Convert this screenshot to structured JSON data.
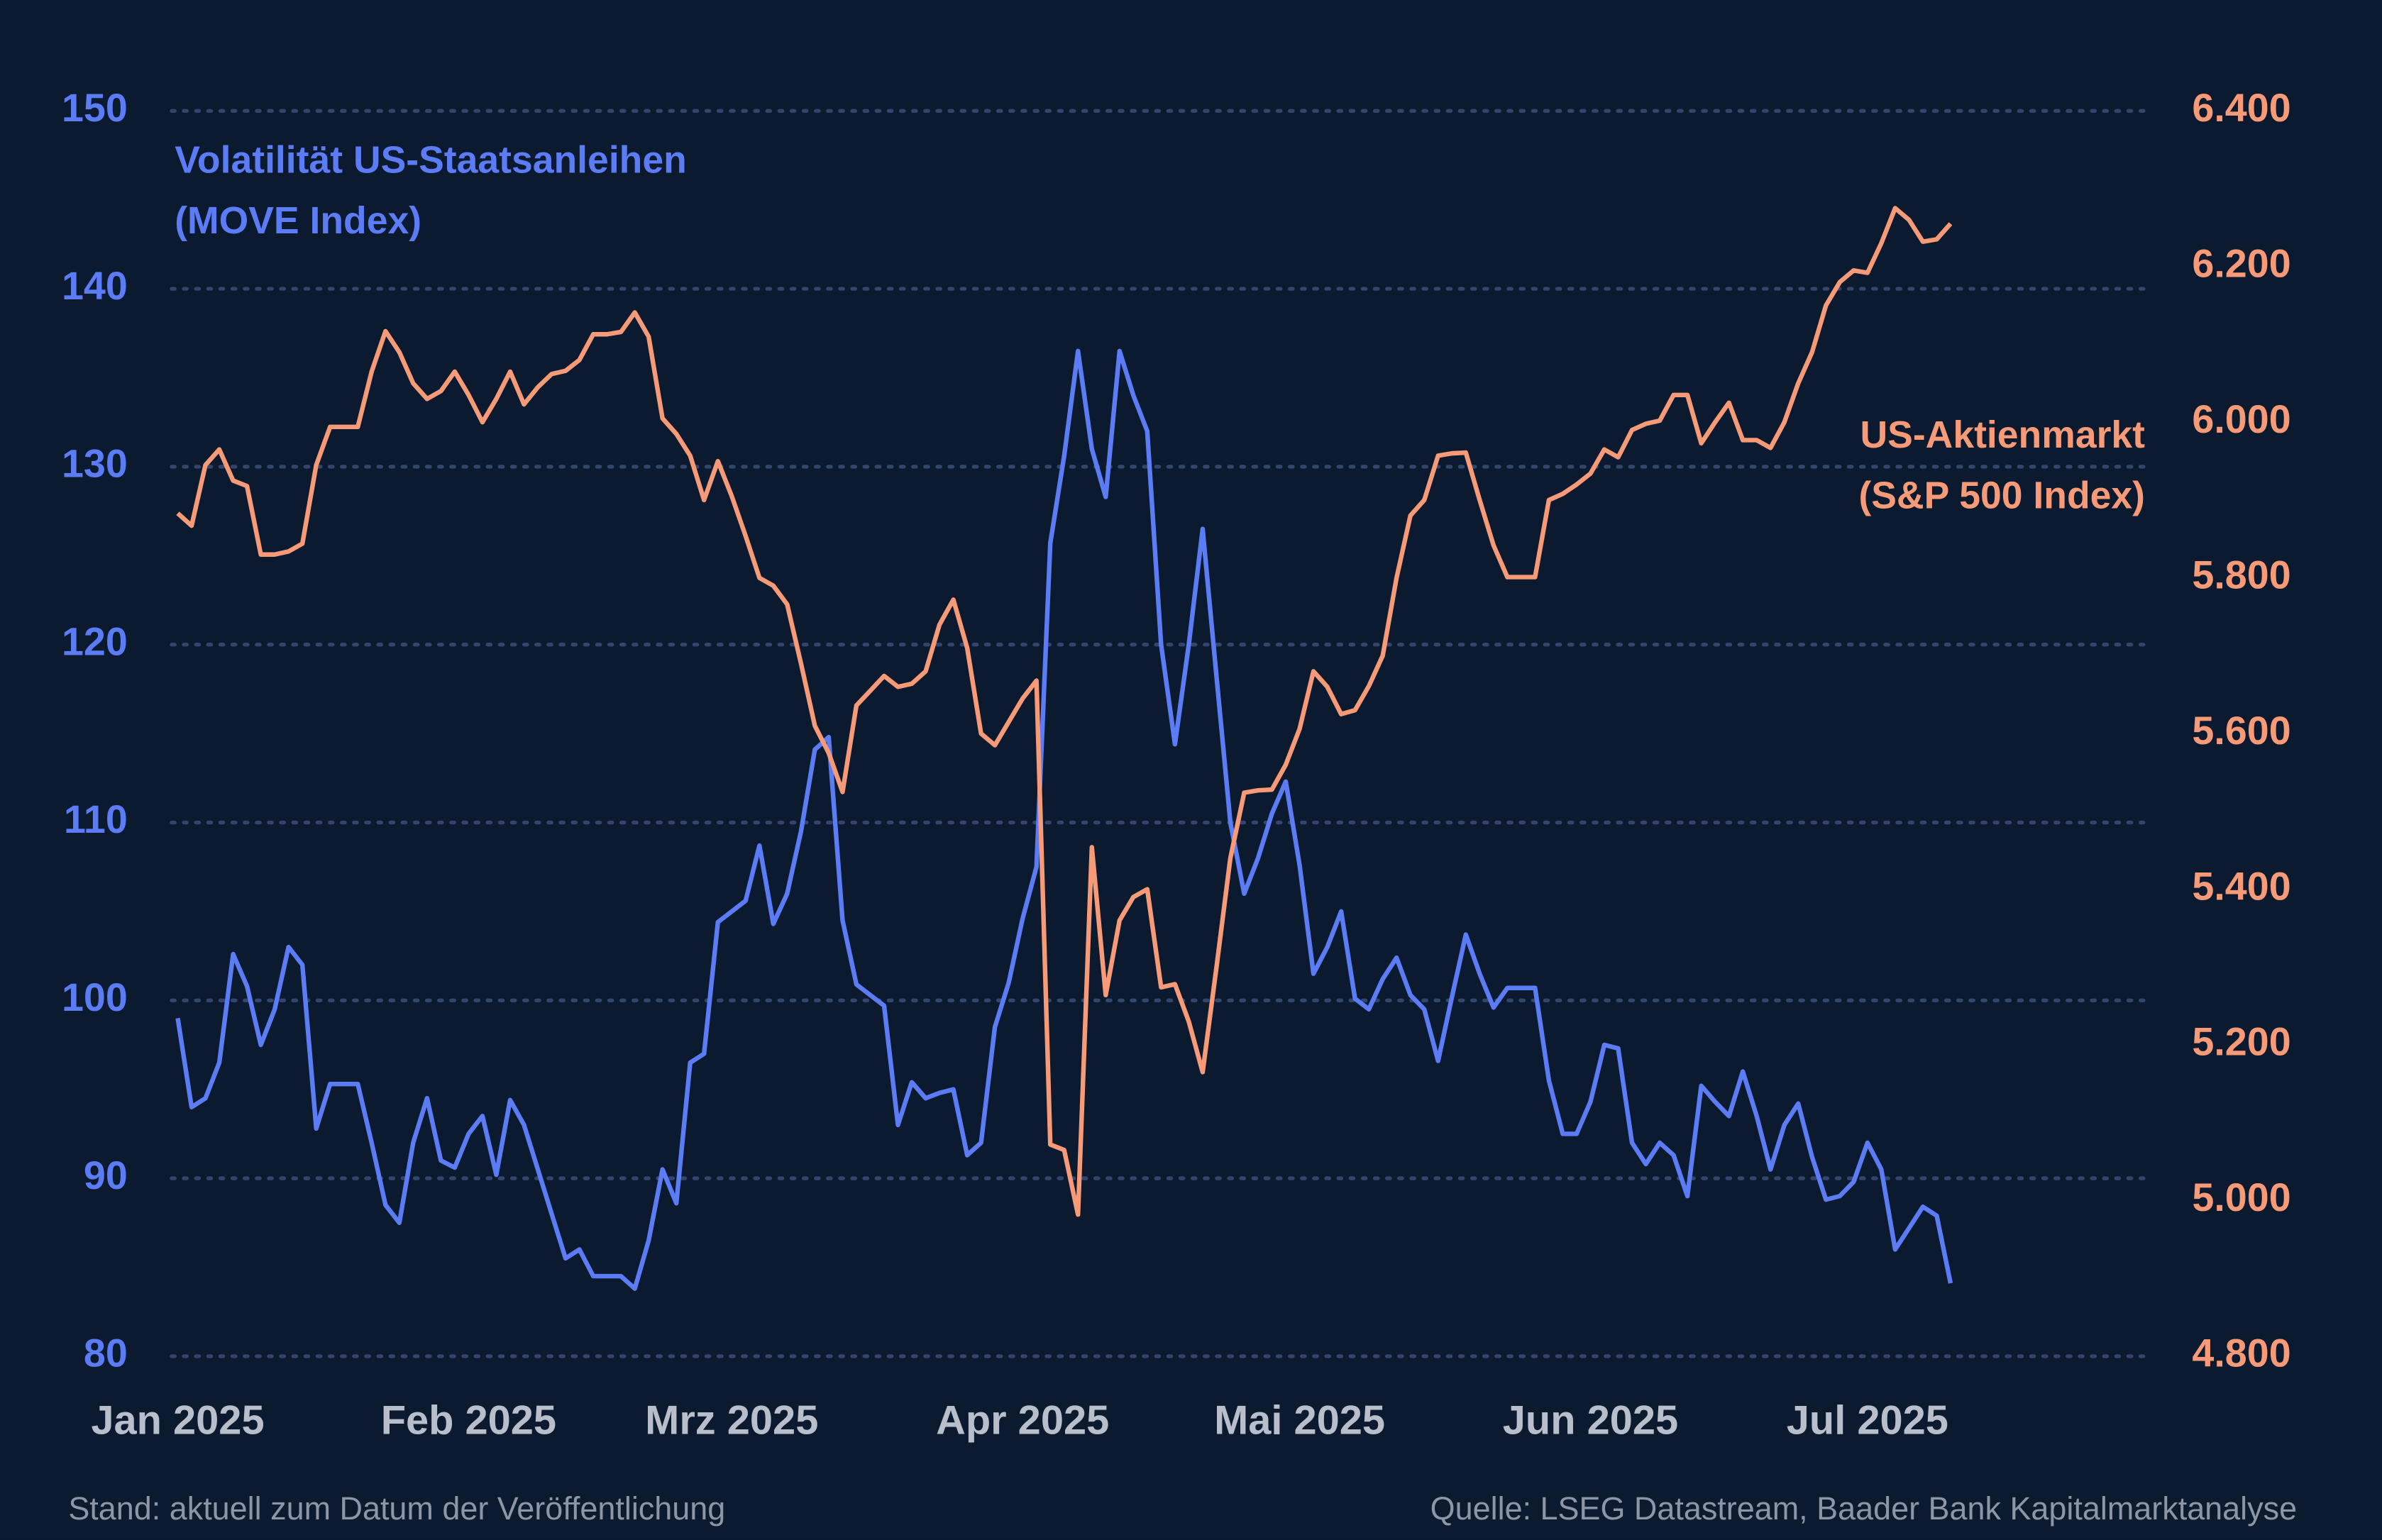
{
  "chart_data": {
    "type": "line",
    "x": [
      0,
      1,
      2,
      3,
      4,
      5,
      6,
      7,
      8,
      9,
      10,
      11,
      12,
      13,
      14,
      15,
      16,
      17,
      18,
      19,
      20,
      21,
      22,
      23,
      24,
      25,
      26,
      27,
      28,
      29,
      30,
      31,
      32,
      33,
      34,
      35,
      36,
      37,
      38,
      39,
      40,
      41,
      42,
      43,
      44,
      45,
      46,
      47,
      48,
      49,
      50,
      51,
      52,
      53,
      54,
      55,
      56,
      57,
      58,
      59,
      60,
      61,
      62,
      63,
      64,
      65,
      66,
      67,
      68,
      69,
      70,
      71,
      72,
      73,
      74,
      75,
      76,
      77,
      78,
      79,
      80,
      81,
      82,
      83,
      84,
      85,
      86,
      87,
      88,
      89,
      90,
      91,
      92,
      93,
      94,
      95,
      96,
      97,
      98,
      99,
      100,
      101,
      102,
      103,
      104,
      105,
      106,
      107,
      108,
      109,
      110,
      111,
      112,
      113,
      114,
      115,
      116,
      117,
      118,
      119,
      120,
      121,
      122,
      123,
      124,
      125,
      126,
      127,
      128
    ],
    "xlim": [
      0,
      128
    ],
    "xticks": [
      {
        "value": 0,
        "label": "Jan 2025"
      },
      {
        "value": 21,
        "label": "Feb 2025"
      },
      {
        "value": 40,
        "label": "Mrz 2025"
      },
      {
        "value": 61,
        "label": "Apr 2025"
      },
      {
        "value": 81,
        "label": "Mai 2025"
      },
      {
        "value": 102,
        "label": "Jun 2025"
      },
      {
        "value": 122,
        "label": "Jul 2025"
      }
    ],
    "ylim": [
      80,
      150
    ],
    "yticks": [
      80,
      90,
      100,
      110,
      120,
      130,
      140,
      150
    ],
    "y2lim": [
      4800,
      6400
    ],
    "y2ticks": [
      {
        "value": 4800,
        "label": "4.800"
      },
      {
        "value": 5000,
        "label": "5.000"
      },
      {
        "value": 5200,
        "label": "5.200"
      },
      {
        "value": 5400,
        "label": "5.400"
      },
      {
        "value": 5600,
        "label": "5.600"
      },
      {
        "value": 5800,
        "label": "5.800"
      },
      {
        "value": 6000,
        "label": "6.000"
      },
      {
        "value": 6200,
        "label": "6.200"
      },
      {
        "value": 6400,
        "label": "6.400"
      }
    ],
    "grid": true,
    "series": [
      {
        "name": [
          "Volatilität US-Staatsanleihen",
          "(MOVE Index)"
        ],
        "color": "#5b7cf5",
        "axis": "y",
        "values": [
          99.0,
          94.0,
          94.5,
          96.5,
          102.6,
          100.8,
          97.5,
          99.5,
          103.0,
          102.0,
          92.8,
          95.3,
          95.3,
          95.3,
          92.0,
          88.5,
          87.5,
          92.0,
          94.5,
          91.0,
          90.6,
          92.5,
          93.5,
          90.2,
          94.4,
          93.0,
          90.5,
          88.0,
          85.5,
          86.0,
          84.5,
          84.5,
          84.5,
          83.8,
          86.5,
          90.5,
          88.6,
          96.5,
          97.0,
          104.4,
          105.0,
          105.6,
          108.7,
          104.3,
          106.0,
          109.5,
          114.1,
          114.8,
          104.5,
          100.9,
          100.3,
          99.7,
          93.0,
          95.4,
          94.5,
          94.8,
          95.0,
          91.3,
          92.0,
          98.5,
          101.0,
          104.6,
          107.5,
          125.7,
          130.6,
          136.5,
          131.0,
          128.3,
          136.5,
          134.0,
          132.0,
          120.0,
          114.4,
          120.0,
          126.5,
          118.2,
          110.0,
          106.0,
          108.0,
          110.5,
          112.3,
          107.6,
          101.5,
          103.0,
          105.0,
          100.1,
          99.5,
          101.2,
          102.4,
          100.3,
          99.5,
          96.6,
          100.2,
          103.7,
          101.5,
          99.6,
          100.7,
          100.7,
          100.7,
          95.5,
          92.5,
          92.5,
          94.3,
          97.5,
          97.3,
          92.0,
          90.8,
          92.0,
          91.3,
          89.0,
          95.2,
          94.3,
          93.5,
          96.0,
          93.5,
          90.5,
          93.0,
          94.2,
          91.2,
          88.8,
          89.0,
          89.8,
          92.0,
          90.5,
          86.0,
          87.2,
          88.4,
          87.9,
          84.1
        ]
      },
      {
        "name": [
          "US-Aktienmarkt",
          "(S&P 500 Index)"
        ],
        "color": "#f79a78",
        "axis": "y2",
        "values": [
          5883,
          5867,
          5945,
          5965,
          5925,
          5918,
          5830,
          5830,
          5834,
          5844,
          5945,
          5994,
          5994,
          5994,
          6065,
          6117,
          6090,
          6050,
          6030,
          6040,
          6065,
          6035,
          6000,
          6030,
          6065,
          6023,
          6045,
          6062,
          6066,
          6080,
          6113,
          6113,
          6116,
          6141,
          6110,
          6005,
          5985,
          5957,
          5900,
          5950,
          5905,
          5854,
          5800,
          5790,
          5766,
          5690,
          5610,
          5575,
          5525,
          5636,
          5655,
          5674,
          5660,
          5664,
          5680,
          5740,
          5772,
          5710,
          5600,
          5585,
          5615,
          5645,
          5668,
          5072,
          5065,
          4982,
          5454,
          5264,
          5360,
          5390,
          5400,
          5274,
          5278,
          5230,
          5165,
          5300,
          5440,
          5524,
          5527,
          5528,
          5560,
          5606,
          5680,
          5660,
          5625,
          5630,
          5661,
          5700,
          5800,
          5880,
          5900,
          5957,
          5960,
          5961,
          5900,
          5842,
          5801,
          5801,
          5801,
          5900,
          5908,
          5920,
          5934,
          5965,
          5955,
          5990,
          5998,
          6002,
          6035,
          6035,
          5973,
          6000,
          6025,
          5977,
          5977,
          5967,
          6000,
          6050,
          6090,
          6150,
          6180,
          6195,
          6192,
          6230,
          6275,
          6260,
          6232,
          6235,
          6255
        ]
      }
    ],
    "notes": "Stand: aktuell zum Datum der Veröffentlichung",
    "source": "Quelle: LSEG Datastream, Baader Bank Kapitalmarktanalyse"
  }
}
